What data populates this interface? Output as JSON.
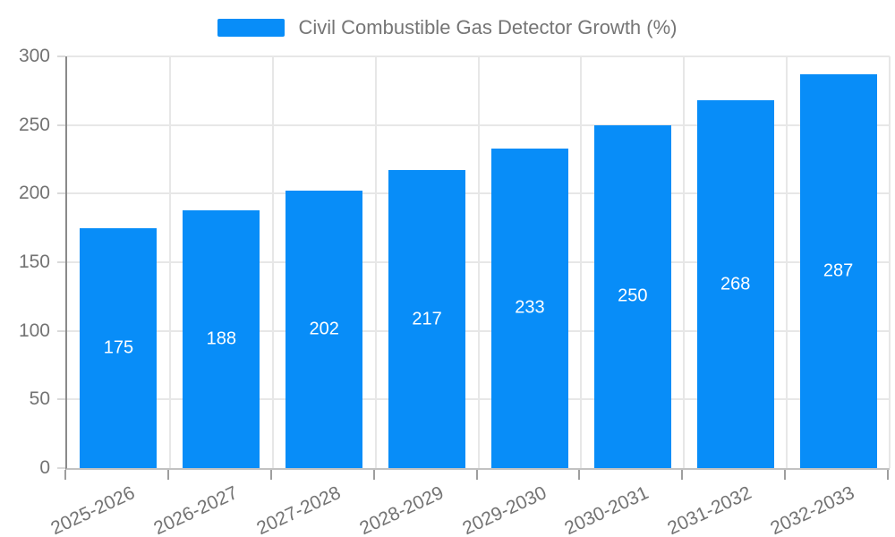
{
  "chart_data": {
    "type": "bar",
    "title": "Civil Combustible Gas Detector Growth (%)",
    "categories": [
      "2025-2026",
      "2026-2027",
      "2027-2028",
      "2028-2029",
      "2029-2030",
      "2030-2031",
      "2031-2032",
      "2032-2033"
    ],
    "values": [
      175,
      188,
      202,
      217,
      233,
      250,
      268,
      287
    ],
    "xlabel": "",
    "ylabel": "",
    "ylim": [
      0,
      300
    ],
    "y_ticks": [
      0,
      50,
      100,
      150,
      200,
      250,
      300
    ],
    "grid": true,
    "legend_position": "top",
    "bar_color": "#088df8",
    "bar_label_color": "#ffffff",
    "axis_text_color": "#737373",
    "x_label_rotation_deg": -25
  },
  "legend": {
    "label": "Civil Combustible Gas Detector Growth (%)",
    "swatch_color": "#088df8"
  }
}
